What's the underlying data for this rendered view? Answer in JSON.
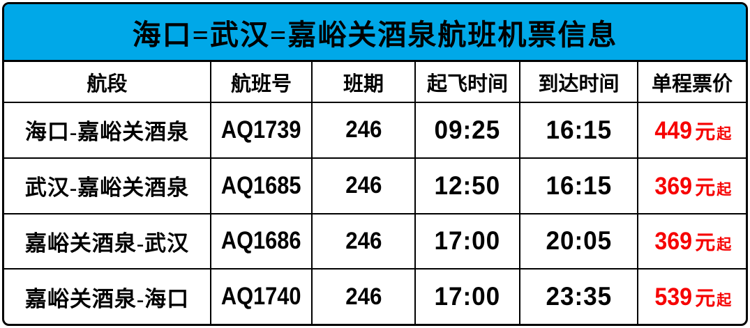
{
  "colors": {
    "banner_background": "#00A8E8",
    "banner_text": "#000000",
    "table_text": "#000000",
    "grid_line": "#000000",
    "price_red": "#F60000"
  },
  "banner": {
    "title": "海口=武汉=嘉峪关酒泉航班机票信息"
  },
  "table": {
    "columns": [
      "航段",
      "航班号",
      "班期",
      "起飞时间",
      "到达时间",
      "单程票价"
    ],
    "rows": [
      {
        "segment": "海口-嘉峪关酒泉",
        "flight_no": "AQ1739",
        "days": "246",
        "departure": "09:25",
        "arrival": "16:15",
        "price": "449",
        "price_unit": "元",
        "price_suffix": "起"
      },
      {
        "segment": "武汉-嘉峪关酒泉",
        "flight_no": "AQ1685",
        "days": "246",
        "departure": "12:50",
        "arrival": "16:15",
        "price": "369",
        "price_unit": "元",
        "price_suffix": "起"
      },
      {
        "segment": "嘉峪关酒泉-武汉",
        "flight_no": "AQ1686",
        "days": "246",
        "departure": "17:00",
        "arrival": "20:05",
        "price": "369",
        "price_unit": "元",
        "price_suffix": "起"
      },
      {
        "segment": "嘉峪关酒泉-海口",
        "flight_no": "AQ1740",
        "days": "246",
        "departure": "17:00",
        "arrival": "23:35",
        "price": "539",
        "price_unit": "元",
        "price_suffix": "起"
      }
    ]
  }
}
